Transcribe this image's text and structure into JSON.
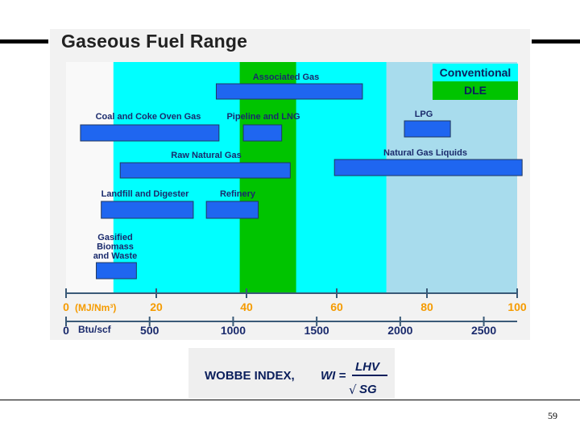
{
  "slide": {
    "title": "Gaseous Fuel Range",
    "page_number": "59"
  },
  "formula": {
    "label": "WOBBE INDEX,",
    "lhs": "WI =",
    "numerator": "LHV",
    "radical": "√",
    "denominator": "SG"
  },
  "chart_data": {
    "type": "bar",
    "title": "Gaseous Fuel Range",
    "axis_primary": {
      "unit_label": "(MJ/Nm³)",
      "range": [
        0,
        100
      ],
      "ticks": [
        "0",
        "20",
        "40",
        "60",
        "80",
        "100"
      ],
      "tick_values": [
        0,
        20,
        40,
        60,
        80,
        100
      ]
    },
    "axis_secondary": {
      "unit_label": "Btu/scf",
      "ticks": [
        "0",
        "500",
        "1000",
        "1500",
        "2000",
        "2500"
      ],
      "tick_values": [
        0,
        500,
        1000,
        1500,
        2000,
        2500
      ]
    },
    "regions": [
      {
        "name": "Conventional",
        "from": 10.5,
        "to": 100,
        "color": "#00ffff"
      },
      {
        "name": "DLE",
        "from": 38.5,
        "to": 51,
        "color": "#00c400"
      },
      {
        "name": "",
        "from": 71,
        "to": 100,
        "color": "#a8dced"
      }
    ],
    "legend": [
      {
        "label": "Conventional",
        "color": "#00ffff"
      },
      {
        "label": "DLE",
        "color": "#00c400"
      }
    ],
    "legend_position": "top-right",
    "bars": [
      {
        "label": "Associated Gas",
        "lo": 33.3,
        "hi": 65.7
      },
      {
        "label": "Coal and Coke Oven Gas",
        "lo": 3.2,
        "hi": 33.9
      },
      {
        "label": "Pipeline and LNG",
        "lo": 39.3,
        "hi": 47.8
      },
      {
        "label": "LPG",
        "lo": 75.0,
        "hi": 85.2
      },
      {
        "label": "Raw Natural Gas",
        "lo": 12.0,
        "hi": 49.7
      },
      {
        "label": "Natural Gas Liquids",
        "lo": 59.5,
        "hi": 101.1
      },
      {
        "label": "Landfill and Digester",
        "lo": 7.8,
        "hi": 28.2
      },
      {
        "label": "Refinery",
        "lo": 31.1,
        "hi": 42.6
      },
      {
        "label": "Gasified Biomass and Waste",
        "lo": 6.7,
        "hi": 15.6
      }
    ]
  }
}
